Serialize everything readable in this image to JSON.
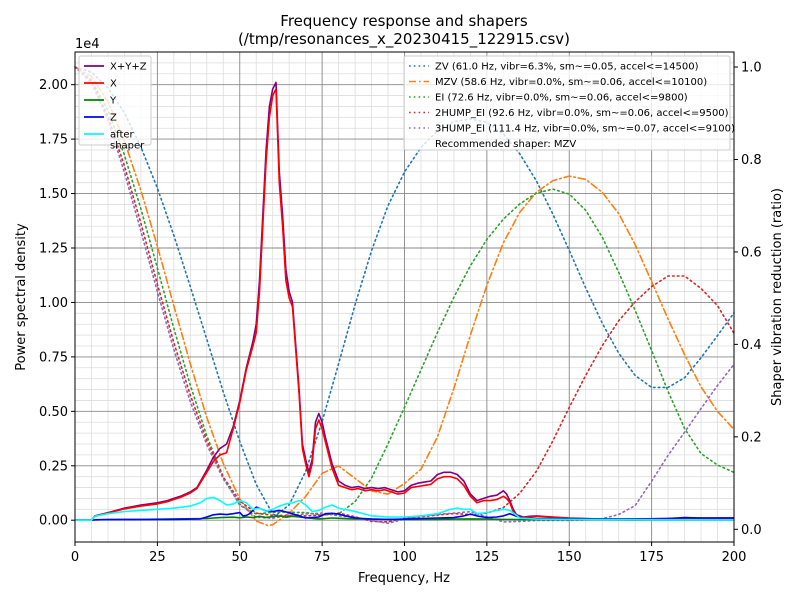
{
  "chart_data": {
    "type": "line",
    "title": "Frequency response and shapers",
    "subtitle": "(/tmp/resonances_x_20230415_122915.csv)",
    "xlabel": "Frequency, Hz",
    "ylabel": "Power spectral density",
    "y2label": "Shaper vibration reduction (ratio)",
    "xlim": [
      0,
      200
    ],
    "ylim": [
      -1000,
      21500
    ],
    "y2lim": [
      -0.0275,
      1.0325
    ],
    "y_offset_label": "1e4",
    "x_ticks": [
      0,
      25,
      50,
      75,
      100,
      125,
      150,
      175,
      200
    ],
    "x_tick_labels": [
      "0",
      "25",
      "50",
      "75",
      "100",
      "125",
      "150",
      "175",
      "200"
    ],
    "y_ticks": [
      0,
      2500,
      5000,
      7500,
      10000,
      12500,
      15000,
      17500,
      20000
    ],
    "y_tick_labels": [
      "0.00",
      "0.25",
      "0.50",
      "0.75",
      "1.00",
      "1.25",
      "1.50",
      "1.75",
      "2.00"
    ],
    "y2_ticks": [
      0,
      0.2,
      0.4,
      0.6,
      0.8,
      1.0
    ],
    "y2_tick_labels": [
      "0.0",
      "0.2",
      "0.4",
      "0.6",
      "0.8",
      "1.0"
    ],
    "grid": "major and minor",
    "legend_left_placement": "top-left",
    "legend_right_placement": "top-right",
    "recommended": "Recommended shaper: MZV",
    "psd_series": [
      {
        "name": "X+Y+Z",
        "color": "#800080",
        "x": [
          0,
          5,
          6,
          10,
          15,
          20,
          25,
          28,
          30,
          32,
          35,
          37,
          40,
          42,
          44,
          46,
          48,
          50,
          52,
          54,
          55,
          56,
          57,
          58,
          59,
          60,
          61,
          62,
          63,
          64,
          65,
          66,
          67,
          68,
          69,
          70,
          71,
          72,
          73,
          74,
          75,
          76,
          77,
          78,
          79,
          80,
          82,
          84,
          86,
          88,
          90,
          92,
          94,
          96,
          98,
          100,
          102,
          104,
          106,
          108,
          110,
          112,
          114,
          116,
          118,
          120,
          122,
          124,
          126,
          128,
          130,
          131,
          132,
          133,
          134,
          136,
          138,
          140,
          145,
          150,
          160,
          170,
          180,
          190,
          200
        ],
        "y": [
          0,
          0,
          200,
          350,
          550,
          700,
          800,
          900,
          1000,
          1100,
          1300,
          1500,
          2300,
          2900,
          3300,
          3500,
          4300,
          5500,
          7000,
          8200,
          9000,
          11000,
          14000,
          17000,
          19000,
          19800,
          20100,
          16000,
          14000,
          11500,
          10500,
          10000,
          8000,
          6000,
          3500,
          2800,
          2200,
          2800,
          4500,
          4900,
          4500,
          3800,
          3200,
          2600,
          2200,
          1800,
          1600,
          1500,
          1550,
          1450,
          1500,
          1450,
          1500,
          1400,
          1300,
          1350,
          1600,
          1700,
          1750,
          1800,
          2100,
          2200,
          2200,
          2100,
          1800,
          1200,
          900,
          1000,
          1100,
          1150,
          1350,
          1200,
          900,
          500,
          250,
          150,
          180,
          200,
          150,
          100,
          50,
          60,
          80,
          100,
          110
        ]
      },
      {
        "name": "X",
        "color": "#ff0000",
        "x": [
          0,
          5,
          6,
          10,
          15,
          20,
          25,
          28,
          30,
          32,
          35,
          37,
          40,
          42,
          44,
          46,
          48,
          50,
          52,
          54,
          55,
          56,
          57,
          58,
          59,
          60,
          61,
          62,
          63,
          64,
          65,
          66,
          67,
          68,
          69,
          70,
          71,
          72,
          73,
          74,
          75,
          76,
          77,
          78,
          79,
          80,
          82,
          84,
          86,
          88,
          90,
          92,
          94,
          96,
          98,
          100,
          102,
          104,
          106,
          108,
          110,
          112,
          114,
          116,
          118,
          120,
          122,
          124,
          126,
          128,
          130,
          131,
          132,
          133,
          134,
          136,
          138,
          140,
          145,
          150,
          160,
          170,
          180,
          190,
          200
        ],
        "y": [
          0,
          0,
          180,
          330,
          520,
          650,
          750,
          850,
          950,
          1050,
          1250,
          1450,
          2200,
          2700,
          3000,
          3100,
          4200,
          5400,
          6900,
          8000,
          8600,
          10500,
          13500,
          16500,
          18500,
          19500,
          19800,
          15500,
          13500,
          11000,
          10200,
          9800,
          7800,
          5800,
          3300,
          2600,
          2000,
          2600,
          4200,
          4600,
          4200,
          3600,
          3000,
          2400,
          2000,
          1600,
          1500,
          1400,
          1450,
          1350,
          1400,
          1350,
          1400,
          1300,
          1200,
          1250,
          1500,
          1550,
          1600,
          1650,
          1900,
          2000,
          2000,
          1900,
          1600,
          1100,
          800,
          900,
          900,
          950,
          1100,
          1000,
          800,
          400,
          200,
          120,
          150,
          180,
          130,
          90,
          40,
          50,
          70,
          90,
          100
        ]
      },
      {
        "name": "Y",
        "color": "#008000",
        "x": [
          0,
          5,
          6,
          10,
          20,
          30,
          40,
          44,
          48,
          50,
          52,
          54,
          56,
          58,
          60,
          62,
          64,
          66,
          68,
          70,
          72,
          74,
          76,
          78,
          80,
          85,
          90,
          95,
          100,
          105,
          110,
          115,
          120,
          125,
          130,
          135,
          140,
          150,
          160,
          170,
          180,
          190,
          200
        ],
        "y": [
          0,
          0,
          20,
          30,
          40,
          60,
          80,
          120,
          140,
          110,
          150,
          120,
          180,
          130,
          160,
          200,
          140,
          180,
          150,
          120,
          90,
          60,
          80,
          100,
          90,
          60,
          50,
          40,
          30,
          30,
          40,
          50,
          60,
          50,
          40,
          30,
          30,
          20,
          20,
          10,
          10,
          10,
          10
        ]
      },
      {
        "name": "Z",
        "color": "#0000ff",
        "x": [
          0,
          5,
          6,
          10,
          20,
          30,
          38,
          40,
          42,
          44,
          46,
          48,
          50,
          51,
          52,
          53,
          54,
          55,
          56,
          57,
          58,
          60,
          62,
          64,
          66,
          68,
          70,
          72,
          74,
          76,
          78,
          80,
          82,
          85,
          90,
          95,
          100,
          105,
          110,
          115,
          118,
          120,
          122,
          125,
          128,
          130,
          132,
          134,
          136,
          140,
          150,
          160,
          170,
          180,
          185,
          190,
          200
        ],
        "y": [
          0,
          0,
          20,
          30,
          30,
          40,
          60,
          150,
          250,
          280,
          260,
          300,
          350,
          200,
          220,
          300,
          450,
          600,
          550,
          480,
          420,
          400,
          450,
          380,
          300,
          200,
          100,
          120,
          150,
          300,
          320,
          280,
          200,
          100,
          50,
          40,
          50,
          80,
          100,
          120,
          200,
          280,
          200,
          120,
          150,
          200,
          300,
          180,
          100,
          80,
          60,
          50,
          50,
          80,
          120,
          100,
          90
        ]
      },
      {
        "name": "after\nshaper",
        "color": "#00ffff",
        "x": [
          0,
          5,
          6,
          10,
          15,
          20,
          25,
          30,
          35,
          38,
          40,
          42,
          44,
          46,
          48,
          50,
          52,
          54,
          56,
          58,
          60,
          62,
          64,
          66,
          68,
          70,
          72,
          74,
          76,
          78,
          80,
          85,
          90,
          95,
          100,
          105,
          110,
          112,
          114,
          116,
          118,
          120,
          122,
          125,
          128,
          130,
          132,
          135,
          140,
          150,
          160,
          170,
          180,
          190,
          200
        ],
        "y": [
          0,
          0,
          180,
          300,
          400,
          450,
          500,
          550,
          650,
          800,
          1000,
          1050,
          900,
          700,
          750,
          900,
          800,
          500,
          550,
          400,
          500,
          650,
          750,
          800,
          900,
          700,
          400,
          450,
          600,
          700,
          550,
          400,
          200,
          150,
          150,
          200,
          300,
          400,
          500,
          550,
          500,
          500,
          300,
          350,
          450,
          500,
          450,
          100,
          50,
          40,
          30,
          30,
          20,
          20,
          20
        ]
      }
    ],
    "shaper_series": [
      {
        "name": "ZV (61.0 Hz, vibr=6.3%, sm~=0.05, accel<=14500)",
        "color": "#1f77b4",
        "dash": "dotted",
        "x": [
          0,
          5,
          10,
          15,
          20,
          25,
          30,
          35,
          40,
          45,
          50,
          55,
          60,
          61,
          65,
          70,
          75,
          80,
          85,
          90,
          95,
          100,
          105,
          110,
          115,
          120,
          125,
          130,
          135,
          140,
          145,
          150,
          155,
          160,
          165,
          170,
          175,
          180,
          185,
          190,
          195,
          200
        ],
        "y": [
          1.0,
          0.989,
          0.955,
          0.901,
          0.827,
          0.738,
          0.636,
          0.525,
          0.411,
          0.297,
          0.19,
          0.097,
          0.033,
          0.03,
          0.053,
          0.125,
          0.233,
          0.358,
          0.486,
          0.603,
          0.7,
          0.773,
          0.826,
          0.862,
          0.882,
          0.888,
          0.88,
          0.855,
          0.812,
          0.754,
          0.682,
          0.603,
          0.522,
          0.446,
          0.381,
          0.333,
          0.307,
          0.307,
          0.328,
          0.371,
          0.419,
          0.468
        ]
      },
      {
        "name": "MZV (58.6 Hz, vibr=0.0%, sm~=0.06, accel<=10100)",
        "color": "#ff7f0e",
        "dash": "dashdot",
        "x": [
          0,
          5,
          10,
          15,
          20,
          25,
          30,
          35,
          40,
          45,
          50,
          55,
          58.6,
          60,
          65,
          70,
          75,
          80,
          85,
          90,
          95,
          100,
          105,
          110,
          115,
          120,
          125,
          130,
          135,
          140,
          145,
          150,
          155,
          160,
          165,
          170,
          175,
          180,
          185,
          190,
          195,
          200
        ],
        "y": [
          1.0,
          0.98,
          0.925,
          0.84,
          0.733,
          0.612,
          0.484,
          0.358,
          0.242,
          0.142,
          0.066,
          0.018,
          0.008,
          0.01,
          0.035,
          0.071,
          0.121,
          0.137,
          0.11,
          0.083,
          0.076,
          0.099,
          0.13,
          0.2,
          0.305,
          0.42,
          0.528,
          0.62,
          0.686,
          0.729,
          0.754,
          0.764,
          0.757,
          0.729,
          0.683,
          0.616,
          0.536,
          0.455,
          0.378,
          0.308,
          0.255,
          0.216
        ]
      },
      {
        "name": "EI (72.6 Hz, vibr=0.0%, sm~=0.06, accel<=9800)",
        "color": "#2ca02c",
        "dash": "dotted",
        "x": [
          0,
          5,
          10,
          15,
          20,
          25,
          30,
          35,
          40,
          45,
          50,
          55,
          60,
          65,
          70,
          75,
          80,
          85,
          90,
          95,
          100,
          105,
          110,
          115,
          120,
          125,
          130,
          135,
          140,
          145,
          150,
          155,
          160,
          165,
          170,
          175,
          180,
          185,
          190,
          195,
          200
        ],
        "y": [
          1.0,
          0.972,
          0.906,
          0.81,
          0.693,
          0.565,
          0.435,
          0.312,
          0.202,
          0.113,
          0.052,
          0.033,
          0.037,
          0.037,
          0.036,
          0.031,
          0.033,
          0.06,
          0.111,
          0.185,
          0.264,
          0.345,
          0.426,
          0.502,
          0.57,
          0.627,
          0.671,
          0.704,
          0.727,
          0.736,
          0.725,
          0.69,
          0.632,
          0.556,
          0.474,
          0.387,
          0.298,
          0.218,
          0.164,
          0.139,
          0.123
        ]
      },
      {
        "name": "2HUMP_EI (92.6 Hz, vibr=0.0%, sm~=0.06, accel<=9500)",
        "color": "#d62728",
        "dash": "dotted",
        "x": [
          0,
          5,
          10,
          15,
          20,
          25,
          30,
          35,
          40,
          45,
          50,
          55,
          60,
          65,
          70,
          75,
          80,
          85,
          90,
          95,
          100,
          105,
          110,
          115,
          120,
          125,
          130,
          135,
          140,
          145,
          150,
          155,
          160,
          165,
          170,
          175,
          180,
          185,
          190,
          195,
          200
        ],
        "y": [
          1.0,
          0.97,
          0.893,
          0.786,
          0.662,
          0.53,
          0.404,
          0.29,
          0.192,
          0.113,
          0.061,
          0.035,
          0.03,
          0.03,
          0.029,
          0.031,
          0.035,
          0.027,
          0.017,
          0.016,
          0.024,
          0.027,
          0.031,
          0.034,
          0.032,
          0.035,
          0.047,
          0.078,
          0.125,
          0.191,
          0.264,
          0.333,
          0.397,
          0.451,
          0.492,
          0.525,
          0.548,
          0.548,
          0.521,
          0.484,
          0.424
        ]
      },
      {
        "name": "3HUMP_EI (111.4 Hz, vibr=0.0%, sm~=0.07, accel<=9100)",
        "color": "#9467bd",
        "dash": "dotted",
        "x": [
          0,
          5,
          10,
          15,
          20,
          25,
          30,
          35,
          40,
          45,
          50,
          55,
          60,
          65,
          70,
          75,
          80,
          85,
          90,
          95,
          100,
          105,
          110,
          115,
          120,
          125,
          130,
          135,
          140,
          145,
          150,
          155,
          160,
          165,
          170,
          175,
          180,
          185,
          190,
          195,
          200
        ],
        "y": [
          1.0,
          0.965,
          0.885,
          0.772,
          0.645,
          0.514,
          0.389,
          0.276,
          0.183,
          0.109,
          0.055,
          0.026,
          0.024,
          0.03,
          0.033,
          0.035,
          0.029,
          0.026,
          0.019,
          0.013,
          0.022,
          0.029,
          0.032,
          0.035,
          0.038,
          0.027,
          0.016,
          0.017,
          0.019,
          0.019,
          0.019,
          0.02,
          0.023,
          0.032,
          0.051,
          0.104,
          0.16,
          0.21,
          0.261,
          0.311,
          0.357
        ]
      }
    ]
  }
}
